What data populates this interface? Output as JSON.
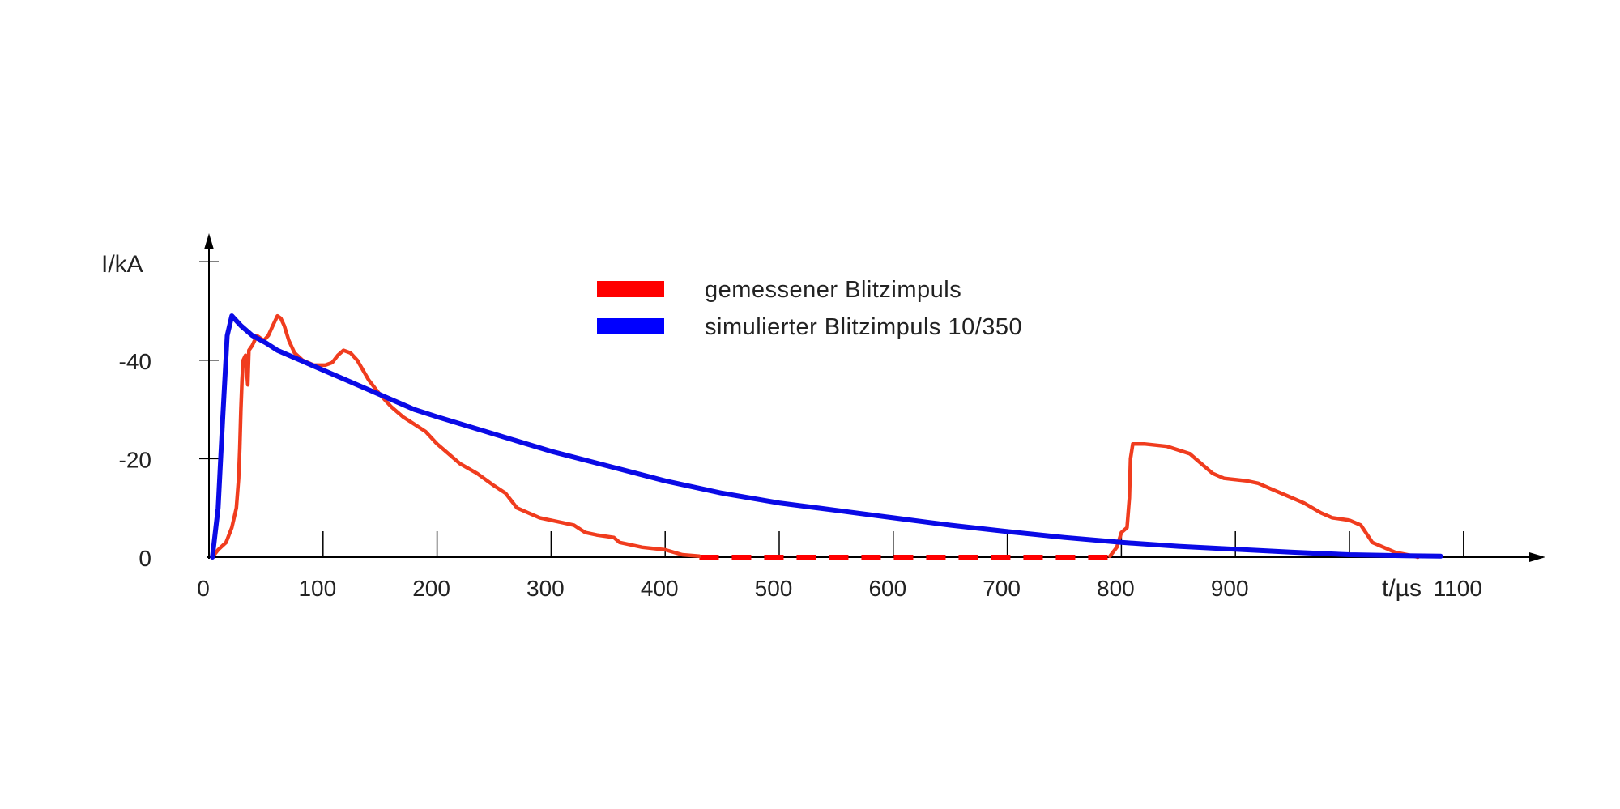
{
  "chart_data": {
    "type": "line",
    "title": "",
    "xlabel": "t/µs",
    "ylabel": "I/kA",
    "xlim": [
      0,
      1200
    ],
    "ylim": [
      0,
      -55
    ],
    "x_ticks": [
      0,
      100,
      200,
      300,
      400,
      500,
      600,
      700,
      800,
      900,
      1100
    ],
    "x_tick_marks": [
      100,
      200,
      300,
      400,
      500,
      600,
      700,
      800,
      900,
      1000,
      1100
    ],
    "y_ticks": [
      0,
      -20,
      -40
    ],
    "y_tick_marks": [
      -20,
      -40,
      -60
    ],
    "grid": false,
    "legend_position": "top-center",
    "series": [
      {
        "name": "gemessener Blitzimpuls",
        "color": "#f03c1e",
        "legend_color": "#ff0000",
        "gap_line": {
          "from": 430,
          "to": 790,
          "color": "#ff0000",
          "style": "dashed"
        },
        "segments": [
          [
            [
              3,
              0
            ],
            [
              8,
              -1.5
            ],
            [
              15,
              -3
            ],
            [
              20,
              -6
            ],
            [
              24,
              -10
            ],
            [
              26,
              -16
            ],
            [
              27,
              -22
            ],
            [
              28,
              -30
            ],
            [
              29,
              -36
            ],
            [
              30,
              -40
            ],
            [
              32,
              -41
            ],
            [
              34,
              -35
            ],
            [
              35,
              -42
            ],
            [
              38,
              -43
            ],
            [
              40,
              -44
            ],
            [
              42,
              -45
            ],
            [
              48,
              -44
            ],
            [
              52,
              -45
            ],
            [
              56,
              -47
            ],
            [
              60,
              -49
            ],
            [
              63,
              -48.5
            ],
            [
              66,
              -47
            ],
            [
              70,
              -44
            ],
            [
              75,
              -41.5
            ],
            [
              82,
              -40
            ],
            [
              92,
              -39
            ],
            [
              102,
              -39
            ],
            [
              108,
              -39.5
            ],
            [
              113,
              -41
            ],
            [
              118,
              -42
            ],
            [
              124,
              -41.5
            ],
            [
              130,
              -40
            ],
            [
              140,
              -36
            ],
            [
              150,
              -33
            ],
            [
              160,
              -30.5
            ],
            [
              170,
              -28.5
            ],
            [
              180,
              -27
            ],
            [
              190,
              -25.5
            ],
            [
              200,
              -23
            ],
            [
              210,
              -21
            ],
            [
              220,
              -19
            ],
            [
              235,
              -17
            ],
            [
              250,
              -14.5
            ],
            [
              260,
              -13
            ],
            [
              270,
              -10
            ],
            [
              280,
              -9
            ],
            [
              290,
              -8
            ],
            [
              300,
              -7.5
            ],
            [
              310,
              -7
            ],
            [
              320,
              -6.5
            ],
            [
              330,
              -5
            ],
            [
              340,
              -4.5
            ],
            [
              355,
              -4
            ],
            [
              360,
              -3
            ],
            [
              380,
              -2
            ],
            [
              400,
              -1.5
            ],
            [
              415,
              -0.5
            ],
            [
              430,
              -0.2
            ]
          ],
          [
            [
              790,
              -0.2
            ],
            [
              796,
              -2
            ],
            [
              800,
              -5
            ],
            [
              805,
              -6
            ],
            [
              807,
              -12
            ],
            [
              808,
              -20
            ],
            [
              810,
              -23
            ],
            [
              820,
              -23
            ],
            [
              840,
              -22.5
            ],
            [
              860,
              -21
            ],
            [
              870,
              -19
            ],
            [
              880,
              -17
            ],
            [
              890,
              -16
            ],
            [
              910,
              -15.5
            ],
            [
              920,
              -15
            ],
            [
              930,
              -14
            ],
            [
              945,
              -12.5
            ],
            [
              960,
              -11
            ],
            [
              975,
              -9
            ],
            [
              985,
              -8
            ],
            [
              1000,
              -7.5
            ],
            [
              1010,
              -6.5
            ],
            [
              1020,
              -3
            ],
            [
              1040,
              -1
            ],
            [
              1055,
              -0.3
            ],
            [
              1060,
              0
            ]
          ]
        ]
      },
      {
        "name": "simulierter Blitzimpuls 10/350",
        "color": "#0a0ae6",
        "legend_color": "#0000ff",
        "points": [
          [
            3,
            0
          ],
          [
            8,
            -10
          ],
          [
            12,
            -28
          ],
          [
            16,
            -45
          ],
          [
            20,
            -49
          ],
          [
            28,
            -47
          ],
          [
            38,
            -45
          ],
          [
            50,
            -43.5
          ],
          [
            60,
            -42
          ],
          [
            80,
            -40
          ],
          [
            100,
            -38
          ],
          [
            120,
            -36
          ],
          [
            150,
            -33
          ],
          [
            180,
            -30
          ],
          [
            200,
            -28.5
          ],
          [
            250,
            -25
          ],
          [
            300,
            -21.5
          ],
          [
            350,
            -18.5
          ],
          [
            400,
            -15.5
          ],
          [
            450,
            -13
          ],
          [
            500,
            -11
          ],
          [
            550,
            -9.5
          ],
          [
            600,
            -8
          ],
          [
            650,
            -6.5
          ],
          [
            700,
            -5.2
          ],
          [
            750,
            -4
          ],
          [
            800,
            -3
          ],
          [
            850,
            -2.2
          ],
          [
            900,
            -1.6
          ],
          [
            950,
            -1
          ],
          [
            1000,
            -0.5
          ],
          [
            1050,
            -0.3
          ],
          [
            1080,
            -0.2
          ]
        ]
      }
    ]
  }
}
